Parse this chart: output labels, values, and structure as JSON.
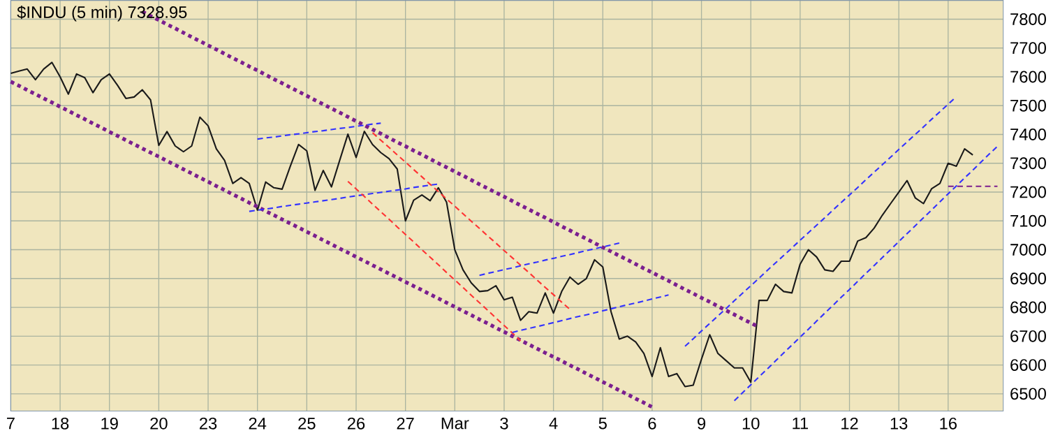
{
  "chart_data": {
    "type": "line",
    "title": "$INDU (5 min) 7328.95",
    "categories": [
      "7",
      null,
      null,
      null,
      null,
      null,
      "18",
      null,
      null,
      null,
      null,
      null,
      "19",
      null,
      null,
      null,
      null,
      null,
      "20",
      null,
      null,
      null,
      null,
      null,
      "23",
      null,
      null,
      null,
      null,
      null,
      "24",
      null,
      null,
      null,
      null,
      null,
      "25",
      null,
      null,
      null,
      null,
      null,
      "26",
      null,
      null,
      null,
      null,
      null,
      "27",
      null,
      null,
      null,
      null,
      null,
      "Mar",
      null,
      null,
      null,
      null,
      null,
      "3",
      null,
      null,
      null,
      null,
      null,
      "4",
      null,
      null,
      null,
      null,
      null,
      "5",
      null,
      null,
      null,
      null,
      null,
      "6",
      null,
      null,
      null,
      null,
      null,
      "9",
      null,
      null,
      null,
      null,
      null,
      "10",
      null,
      null,
      null,
      null,
      null,
      "11",
      null,
      null,
      null,
      null,
      null,
      "12",
      null,
      null,
      null,
      null,
      null,
      "13",
      null,
      null,
      null,
      null,
      null,
      "16",
      null,
      null,
      null,
      null,
      null,
      null
    ],
    "ylim": [
      6440,
      7865
    ],
    "yticks": [
      6500,
      6600,
      6700,
      6800,
      6900,
      7000,
      7100,
      7200,
      7300,
      7400,
      7500,
      7600,
      7700,
      7800
    ],
    "grid": true,
    "marker": "none",
    "series": [
      {
        "color": "#1a1a1a",
        "line_style": "solid",
        "values": [
          7612,
          7620,
          7627,
          7590,
          7627,
          7650,
          7600,
          7540,
          7610,
          7597,
          7545,
          7590,
          7610,
          7570,
          7525,
          7530,
          7555,
          7520,
          7362,
          7410,
          7360,
          7340,
          7360,
          7460,
          7430,
          7350,
          7310,
          7230,
          7250,
          7230,
          7137,
          7235,
          7215,
          7210,
          7290,
          7365,
          7343,
          7206,
          7275,
          7218,
          7310,
          7401,
          7320,
          7411,
          7365,
          7337,
          7316,
          7280,
          7100,
          7172,
          7190,
          7170,
          7215,
          7165,
          7000,
          6930,
          6885,
          6855,
          6858,
          6875,
          6826,
          6835,
          6755,
          6785,
          6780,
          6850,
          6780,
          6855,
          6905,
          6880,
          6900,
          6965,
          6940,
          6785,
          6690,
          6700,
          6680,
          6640,
          6560,
          6660,
          6560,
          6570,
          6525,
          6530,
          6620,
          6705,
          6640,
          6615,
          6590,
          6590,
          6540,
          6824,
          6824,
          6880,
          6855,
          6850,
          6950,
          7000,
          6975,
          6930,
          6925,
          6960,
          6960,
          7030,
          7042,
          7075,
          7120,
          7160,
          7200,
          7240,
          7180,
          7160,
          7212,
          7230,
          7300,
          7290,
          7350,
          7329,
          null,
          null,
          null
        ]
      },
      {
        "color": "#7b1f8f",
        "line_style": "dotted",
        "values": [
          null,
          null,
          null,
          null,
          null,
          null,
          null,
          null,
          null,
          null,
          null,
          null,
          null,
          null,
          null,
          null,
          7826,
          7811,
          7797,
          7782,
          7768,
          7753,
          7738,
          7724,
          7709,
          7695,
          7680,
          7665,
          7651,
          7636,
          7622,
          7607,
          7592,
          7578,
          7563,
          7549,
          7534,
          7519,
          7505,
          7490,
          7476,
          7461,
          7446,
          7432,
          7417,
          7403,
          7388,
          7373,
          7359,
          7344,
          7330,
          7315,
          7300,
          7286,
          7271,
          7257,
          7242,
          7227,
          7213,
          7198,
          7184,
          7169,
          7154,
          7140,
          7125,
          7111,
          7096,
          7081,
          7067,
          7052,
          7038,
          7023,
          7008,
          6994,
          6979,
          6965,
          6950,
          6935,
          6921,
          6906,
          6892,
          6877,
          6862,
          6848,
          6833,
          6819,
          6804,
          6789,
          6775,
          6760,
          6746,
          6731,
          null,
          null,
          null,
          null,
          null,
          null,
          null,
          null,
          null,
          null,
          null,
          null,
          null,
          null,
          null,
          null,
          null,
          null,
          null,
          null,
          null,
          null,
          null,
          null,
          null,
          null,
          null,
          null,
          null
        ]
      },
      {
        "color": "#7b1f8f",
        "line_style": "dotted",
        "values": [
          7583,
          7569,
          7554,
          7540,
          7525,
          7511,
          7496,
          7482,
          7467,
          7453,
          7438,
          7424,
          7409,
          7395,
          7380,
          7366,
          7351,
          7337,
          7323,
          7308,
          7294,
          7279,
          7265,
          7250,
          7236,
          7221,
          7207,
          7192,
          7178,
          7163,
          7149,
          7134,
          7120,
          7105,
          7091,
          7077,
          7062,
          7048,
          7033,
          7019,
          7004,
          6990,
          6975,
          6961,
          6946,
          6932,
          6917,
          6903,
          6888,
          6874,
          6860,
          6845,
          6831,
          6816,
          6802,
          6787,
          6773,
          6758,
          6744,
          6729,
          6715,
          6700,
          6686,
          6671,
          6657,
          6642,
          6628,
          6614,
          6599,
          6585,
          6570,
          6556,
          6541,
          6527,
          6512,
          6498,
          6483,
          6469,
          6454,
          null,
          null,
          null,
          null,
          null,
          null,
          null,
          null,
          null,
          null,
          null,
          null,
          null,
          null,
          null,
          null,
          null,
          null,
          null,
          null,
          null,
          null,
          null,
          null,
          null,
          null,
          null,
          null,
          null,
          null,
          null,
          null,
          null,
          null,
          null,
          null,
          null,
          null,
          null,
          null,
          null,
          null
        ]
      },
      {
        "color": "#3333ff",
        "line_style": "dashed",
        "values": [
          null,
          null,
          null,
          null,
          null,
          null,
          null,
          null,
          null,
          null,
          null,
          null,
          null,
          null,
          null,
          null,
          null,
          null,
          null,
          null,
          null,
          null,
          null,
          null,
          null,
          null,
          null,
          null,
          null,
          null,
          7384,
          7388,
          7391,
          7395,
          7399,
          7402,
          7406,
          7410,
          7413,
          7417,
          7421,
          7424,
          7428,
          7432,
          7436,
          7439,
          null,
          null,
          null,
          null,
          null,
          null,
          null,
          null,
          null,
          null,
          null,
          null,
          null,
          null,
          null,
          null,
          null,
          null,
          null,
          null,
          null,
          null,
          null,
          null,
          null,
          null,
          null,
          null,
          null,
          null,
          null,
          null,
          null,
          null,
          null,
          null,
          null,
          null,
          null,
          null,
          null,
          null,
          null,
          null,
          null,
          null,
          null,
          null,
          null,
          null,
          null,
          null,
          null,
          null,
          null,
          null,
          null,
          null,
          null,
          null,
          null,
          null,
          null,
          null,
          null,
          null,
          null,
          null,
          null,
          null,
          null,
          null,
          null,
          null,
          null
        ]
      },
      {
        "color": "#3333ff",
        "line_style": "dashed",
        "values": [
          null,
          null,
          null,
          null,
          null,
          null,
          null,
          null,
          null,
          null,
          null,
          null,
          null,
          null,
          null,
          null,
          null,
          null,
          null,
          null,
          null,
          null,
          null,
          null,
          null,
          null,
          null,
          null,
          null,
          7133,
          7137,
          7141,
          7145,
          7150,
          7154,
          7158,
          7162,
          7166,
          7170,
          7174,
          7178,
          7183,
          7187,
          7191,
          7195,
          7199,
          7203,
          7207,
          7211,
          7216,
          7220,
          7224,
          7228,
          null,
          null,
          null,
          null,
          null,
          null,
          null,
          null,
          null,
          null,
          null,
          null,
          null,
          null,
          null,
          null,
          null,
          null,
          null,
          null,
          null,
          null,
          null,
          null,
          null,
          null,
          null,
          null,
          null,
          null,
          null,
          null,
          null,
          null,
          null,
          null,
          null,
          null,
          null,
          null,
          null,
          null,
          null,
          null,
          null,
          null,
          null,
          null,
          null,
          null,
          null,
          null,
          null,
          null,
          null,
          null,
          null,
          null,
          null,
          null,
          null,
          null,
          null,
          null,
          null,
          null,
          null,
          null
        ]
      },
      {
        "color": "#ff3333",
        "line_style": "dashed",
        "values": [
          null,
          null,
          null,
          null,
          null,
          null,
          null,
          null,
          null,
          null,
          null,
          null,
          null,
          null,
          null,
          null,
          null,
          null,
          null,
          null,
          null,
          null,
          null,
          null,
          null,
          null,
          null,
          null,
          null,
          null,
          null,
          null,
          null,
          null,
          null,
          null,
          null,
          null,
          null,
          null,
          null,
          null,
          null,
          null,
          7406,
          7380,
          7355,
          7329,
          7304,
          7278,
          7253,
          7227,
          7202,
          7176,
          7151,
          7125,
          7099,
          7074,
          7048,
          7023,
          6997,
          6972,
          6946,
          6921,
          6895,
          6869,
          6844,
          6818,
          6793,
          null,
          null,
          null,
          null,
          null,
          null,
          null,
          null,
          null,
          null,
          null,
          null,
          null,
          null,
          null,
          null,
          null,
          null,
          null,
          null,
          null,
          null,
          null,
          null,
          null,
          null,
          null,
          null,
          null,
          null,
          null,
          null,
          null,
          null,
          null,
          null,
          null,
          null,
          null,
          null,
          null,
          null,
          null,
          null,
          null,
          null,
          null,
          null,
          null,
          null,
          null,
          null
        ]
      },
      {
        "color": "#ff3333",
        "line_style": "dashed",
        "values": [
          null,
          null,
          null,
          null,
          null,
          null,
          null,
          null,
          null,
          null,
          null,
          null,
          null,
          null,
          null,
          null,
          null,
          null,
          null,
          null,
          null,
          null,
          null,
          null,
          null,
          null,
          null,
          null,
          null,
          null,
          null,
          null,
          null,
          null,
          null,
          null,
          null,
          null,
          null,
          null,
          null,
          7237,
          7211,
          7185,
          7158,
          7132,
          7106,
          7079,
          7053,
          7027,
          7000,
          6974,
          6948,
          6921,
          6895,
          6869,
          6842,
          6816,
          6790,
          6763,
          6737,
          6711,
          6684,
          null,
          null,
          null,
          null,
          null,
          null,
          null,
          null,
          null,
          null,
          null,
          null,
          null,
          null,
          null,
          null,
          null,
          null,
          null,
          null,
          null,
          null,
          null,
          null,
          null,
          null,
          null,
          null,
          null,
          null,
          null,
          null,
          null,
          null,
          null,
          null,
          null,
          null,
          null,
          null,
          null,
          null,
          null,
          null,
          null,
          null,
          null,
          null,
          null,
          null,
          null,
          null,
          null,
          null,
          null,
          null,
          null,
          null
        ]
      },
      {
        "color": "#3333ff",
        "line_style": "dashed",
        "values": [
          null,
          null,
          null,
          null,
          null,
          null,
          null,
          null,
          null,
          null,
          null,
          null,
          null,
          null,
          null,
          null,
          null,
          null,
          null,
          null,
          null,
          null,
          null,
          null,
          null,
          null,
          null,
          null,
          null,
          null,
          null,
          null,
          null,
          null,
          null,
          null,
          null,
          null,
          null,
          null,
          null,
          null,
          null,
          null,
          null,
          null,
          null,
          null,
          null,
          null,
          null,
          null,
          null,
          null,
          null,
          null,
          null,
          6911,
          6918,
          6924,
          6931,
          6937,
          6944,
          6951,
          6957,
          6964,
          6970,
          6977,
          6983,
          6990,
          6997,
          7003,
          7010,
          7016,
          7023,
          null,
          null,
          null,
          null,
          null,
          null,
          null,
          null,
          null,
          null,
          null,
          null,
          null,
          null,
          null,
          null,
          null,
          null,
          null,
          null,
          null,
          null,
          null,
          null,
          null,
          null,
          null,
          null,
          null,
          null,
          null,
          null,
          null,
          null,
          null,
          null,
          null,
          null,
          null,
          null,
          null,
          null,
          null,
          null,
          null,
          null
        ]
      },
      {
        "color": "#3333ff",
        "line_style": "dashed",
        "values": [
          null,
          null,
          null,
          null,
          null,
          null,
          null,
          null,
          null,
          null,
          null,
          null,
          null,
          null,
          null,
          null,
          null,
          null,
          null,
          null,
          null,
          null,
          null,
          null,
          null,
          null,
          null,
          null,
          null,
          null,
          null,
          null,
          null,
          null,
          null,
          null,
          null,
          null,
          null,
          null,
          null,
          null,
          null,
          null,
          null,
          null,
          null,
          null,
          null,
          null,
          null,
          null,
          null,
          null,
          null,
          null,
          null,
          null,
          null,
          null,
          null,
          6713,
          6720,
          6727,
          6733,
          6740,
          6747,
          6754,
          6761,
          6768,
          6774,
          6781,
          6788,
          6795,
          6802,
          6809,
          6815,
          6822,
          6829,
          6836,
          6843,
          null,
          null,
          null,
          null,
          null,
          null,
          null,
          null,
          null,
          null,
          null,
          null,
          null,
          null,
          null,
          null,
          null,
          null,
          null,
          null,
          null,
          null,
          null,
          null,
          null,
          null,
          null,
          null,
          null,
          null,
          null,
          null,
          null,
          null,
          null,
          null,
          null,
          null,
          null,
          null
        ]
      },
      {
        "color": "#3333ff",
        "line_style": "dashed",
        "values": [
          null,
          null,
          null,
          null,
          null,
          null,
          null,
          null,
          null,
          null,
          null,
          null,
          null,
          null,
          null,
          null,
          null,
          null,
          null,
          null,
          null,
          null,
          null,
          null,
          null,
          null,
          null,
          null,
          null,
          null,
          null,
          null,
          null,
          null,
          null,
          null,
          null,
          null,
          null,
          null,
          null,
          null,
          null,
          null,
          null,
          null,
          null,
          null,
          null,
          null,
          null,
          null,
          null,
          null,
          null,
          null,
          null,
          null,
          null,
          null,
          null,
          null,
          null,
          null,
          null,
          null,
          null,
          null,
          null,
          null,
          null,
          null,
          null,
          null,
          null,
          null,
          null,
          null,
          null,
          null,
          null,
          null,
          6665,
          6691,
          6718,
          6744,
          6770,
          6796,
          6823,
          6849,
          6875,
          6901,
          6928,
          6954,
          6980,
          7006,
          7033,
          7059,
          7085,
          7111,
          7138,
          7164,
          7190,
          7216,
          7243,
          7269,
          7295,
          7321,
          7348,
          7374,
          7400,
          7426,
          7453,
          7479,
          7505,
          7531,
          null,
          null,
          null,
          null,
          null
        ]
      },
      {
        "color": "#3333ff",
        "line_style": "dashed",
        "values": [
          null,
          null,
          null,
          null,
          null,
          null,
          null,
          null,
          null,
          null,
          null,
          null,
          null,
          null,
          null,
          null,
          null,
          null,
          null,
          null,
          null,
          null,
          null,
          null,
          null,
          null,
          null,
          null,
          null,
          null,
          null,
          null,
          null,
          null,
          null,
          null,
          null,
          null,
          null,
          null,
          null,
          null,
          null,
          null,
          null,
          null,
          null,
          null,
          null,
          null,
          null,
          null,
          null,
          null,
          null,
          null,
          null,
          null,
          null,
          null,
          null,
          null,
          null,
          null,
          null,
          null,
          null,
          null,
          null,
          null,
          null,
          null,
          null,
          null,
          null,
          null,
          null,
          null,
          null,
          null,
          null,
          null,
          null,
          null,
          null,
          null,
          null,
          null,
          6476,
          6504,
          6531,
          6559,
          6586,
          6614,
          6642,
          6669,
          6697,
          6724,
          6752,
          6780,
          6807,
          6835,
          6862,
          6890,
          6918,
          6945,
          6973,
          7000,
          7028,
          7056,
          7083,
          7111,
          7138,
          7166,
          7194,
          7221,
          7249,
          7276,
          7304,
          7332,
          7359
        ]
      },
      {
        "color": "#7b1f8f",
        "line_style": "dashed",
        "values": [
          null,
          null,
          null,
          null,
          null,
          null,
          null,
          null,
          null,
          null,
          null,
          null,
          null,
          null,
          null,
          null,
          null,
          null,
          null,
          null,
          null,
          null,
          null,
          null,
          null,
          null,
          null,
          null,
          null,
          null,
          null,
          null,
          null,
          null,
          null,
          null,
          null,
          null,
          null,
          null,
          null,
          null,
          null,
          null,
          null,
          null,
          null,
          null,
          null,
          null,
          null,
          null,
          null,
          null,
          null,
          null,
          null,
          null,
          null,
          null,
          null,
          null,
          null,
          null,
          null,
          null,
          null,
          null,
          null,
          null,
          null,
          null,
          null,
          null,
          null,
          null,
          null,
          null,
          null,
          null,
          null,
          null,
          null,
          null,
          null,
          null,
          null,
          null,
          null,
          null,
          null,
          null,
          null,
          null,
          null,
          null,
          null,
          null,
          null,
          null,
          null,
          null,
          null,
          null,
          null,
          null,
          null,
          null,
          null,
          null,
          null,
          null,
          null,
          null,
          7220,
          7220,
          7220,
          7220,
          7220,
          7220,
          7220
        ]
      }
    ]
  }
}
